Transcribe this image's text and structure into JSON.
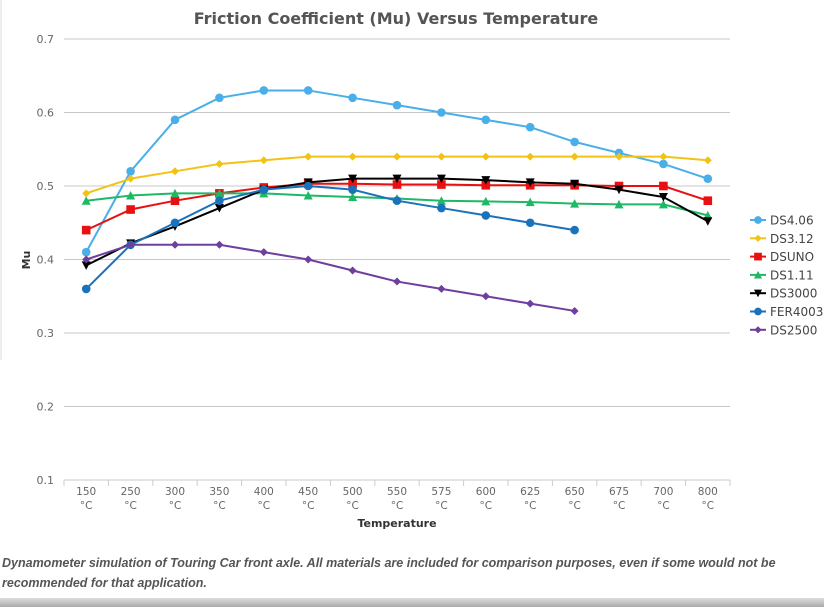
{
  "chart_data": {
    "type": "line",
    "title": "Friction Coefficient (Mu) Versus Temperature",
    "xlabel": "Temperature",
    "ylabel": "Mu",
    "ylim": [
      0.1,
      0.7
    ],
    "yticks": [
      "0.1",
      "0.2",
      "0.3",
      "0.4",
      "0.5",
      "0.6",
      "0.7"
    ],
    "grid": "horizontal",
    "legend_position": "right",
    "categories": [
      "150 °C",
      "250 °C",
      "300 °C",
      "350 °C",
      "400 °C",
      "450 °C",
      "500 °C",
      "550 °C",
      "575 °C",
      "600 °C",
      "625 °C",
      "650 °C",
      "675 °C",
      "700 °C",
      "800 °C"
    ],
    "series": [
      {
        "name": "DS4.06",
        "color": "#4aaee8",
        "marker": "circle",
        "values": [
          0.41,
          0.52,
          0.59,
          0.62,
          0.63,
          0.63,
          0.62,
          0.61,
          0.6,
          0.59,
          0.58,
          0.56,
          0.545,
          0.53,
          0.51
        ]
      },
      {
        "name": "DS3.12",
        "color": "#f2c314",
        "marker": "diamond",
        "values": [
          0.49,
          0.51,
          0.52,
          0.53,
          0.535,
          0.54,
          0.54,
          0.54,
          0.54,
          0.54,
          0.54,
          0.54,
          0.54,
          0.54,
          0.535
        ]
      },
      {
        "name": "DSUNO",
        "color": "#e81010",
        "marker": "square",
        "values": [
          0.44,
          0.468,
          0.48,
          0.49,
          0.498,
          0.503,
          0.503,
          0.502,
          0.502,
          0.501,
          0.501,
          0.501,
          0.5,
          0.5,
          0.48
        ]
      },
      {
        "name": "DS1.11",
        "color": "#1fb865",
        "marker": "triangle",
        "values": [
          0.48,
          0.487,
          0.49,
          0.49,
          0.49,
          0.487,
          0.485,
          0.483,
          0.48,
          0.479,
          0.478,
          0.476,
          0.475,
          0.475,
          0.46
        ]
      },
      {
        "name": "DS3000",
        "color": "#000000",
        "marker": "triangle-down",
        "values": [
          0.392,
          0.422,
          0.445,
          0.47,
          0.495,
          0.505,
          0.51,
          0.51,
          0.51,
          0.508,
          0.505,
          0.503,
          0.495,
          0.485,
          0.452
        ]
      },
      {
        "name": "FER4003",
        "color": "#1a72bb",
        "marker": "circle",
        "values": [
          0.36,
          0.42,
          0.45,
          0.48,
          0.495,
          0.5,
          0.495,
          0.48,
          0.47,
          0.46,
          0.45,
          0.44,
          null,
          null,
          null
        ]
      },
      {
        "name": "DS2500",
        "color": "#6f3f9e",
        "marker": "diamond",
        "values": [
          0.4,
          0.42,
          0.42,
          0.42,
          0.41,
          0.4,
          0.385,
          0.37,
          0.36,
          0.35,
          0.34,
          0.33,
          null,
          null,
          null
        ]
      }
    ]
  },
  "caption": "Dynamometer simulation of Touring Car front axle. All materials are included for comparison purposes, even if some would not be recommended for that application."
}
